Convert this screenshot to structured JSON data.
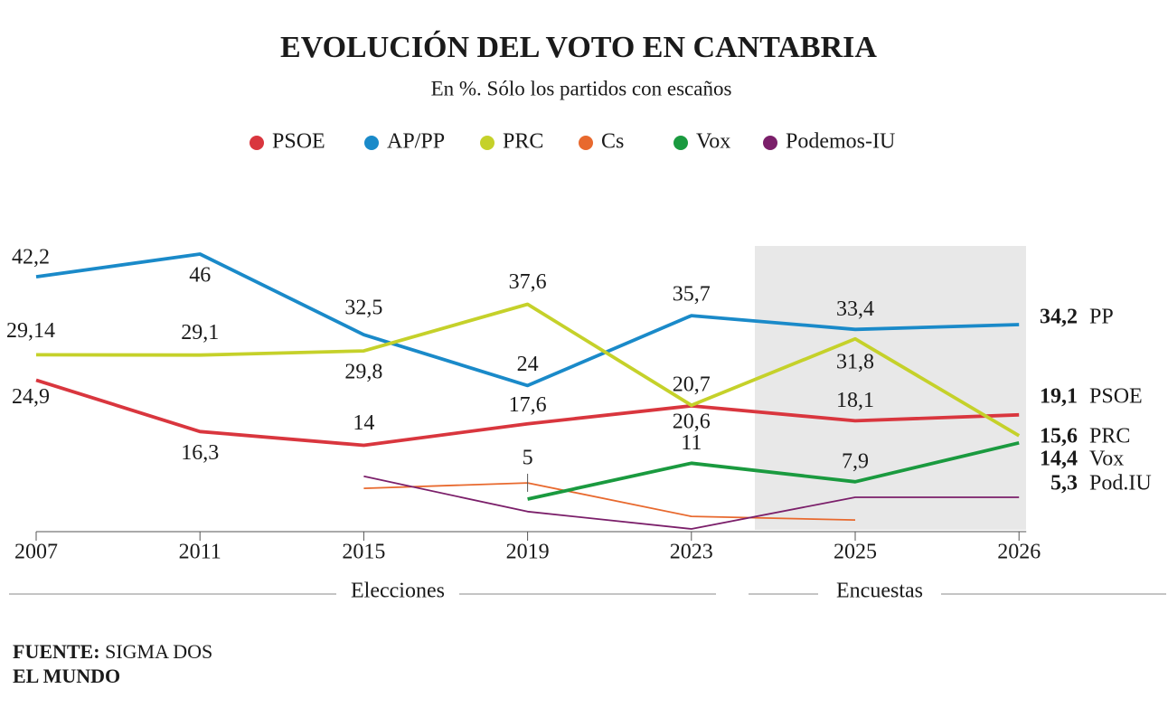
{
  "chart_data": {
    "type": "line",
    "title": "EVOLUCIÓN DEL VOTO EN CANTABRIA",
    "subtitle": "En %. Sólo los partidos con escaños",
    "categories": [
      "2007",
      "2011",
      "2015",
      "2019",
      "2023",
      "2025",
      "2026"
    ],
    "ylim": [
      0,
      46
    ],
    "series": [
      {
        "name": "PSOE",
        "short_name": "PSOE",
        "color": "#d9363e",
        "values": [
          24.9,
          16.3,
          14,
          17.6,
          20.6,
          18.1,
          19.1
        ],
        "value_labels": [
          "24,9",
          "16,3",
          "14",
          "17,6",
          "20,6",
          "18,1",
          "19,1"
        ]
      },
      {
        "name": "AP/PP",
        "short_name": "PP",
        "color": "#1a8ac9",
        "values": [
          42.2,
          46,
          32.5,
          24,
          35.7,
          33.4,
          34.2
        ],
        "value_labels": [
          "42,2",
          "46",
          "32,5",
          "24",
          "35,7",
          "33,4",
          "34,2"
        ]
      },
      {
        "name": "PRC",
        "short_name": "PRC",
        "color": "#c5d12a",
        "values": [
          29.14,
          29.1,
          29.8,
          37.6,
          20.7,
          31.8,
          15.6
        ],
        "value_labels": [
          "29,14",
          "29,1",
          "29,8",
          "37,6",
          "20,7",
          "31,8",
          "15,6"
        ]
      },
      {
        "name": "Cs",
        "color": "#e8692e",
        "values": [
          null,
          null,
          6.8,
          7.7,
          2.1,
          1.5,
          null
        ]
      },
      {
        "name": "Vox",
        "short_name": "Vox",
        "color": "#1a9a3f",
        "values": [
          null,
          null,
          null,
          5,
          11,
          7.9,
          14.4
        ],
        "value_labels": [
          null,
          null,
          null,
          "5",
          "11",
          "7,9",
          "14,4"
        ]
      },
      {
        "name": "Podemos-IU",
        "short_name": "Pod.IU",
        "color": "#7b1f6a",
        "values": [
          null,
          null,
          8.8,
          2.9,
          0,
          5.3,
          5.3
        ],
        "value_labels": [
          null,
          null,
          null,
          null,
          null,
          null,
          "5,3"
        ]
      }
    ],
    "sections": [
      "Elecciones",
      "Encuestas"
    ],
    "source_label": "FUENTE:",
    "source": "SIGMA DOS",
    "brand": "EL MUNDO"
  }
}
